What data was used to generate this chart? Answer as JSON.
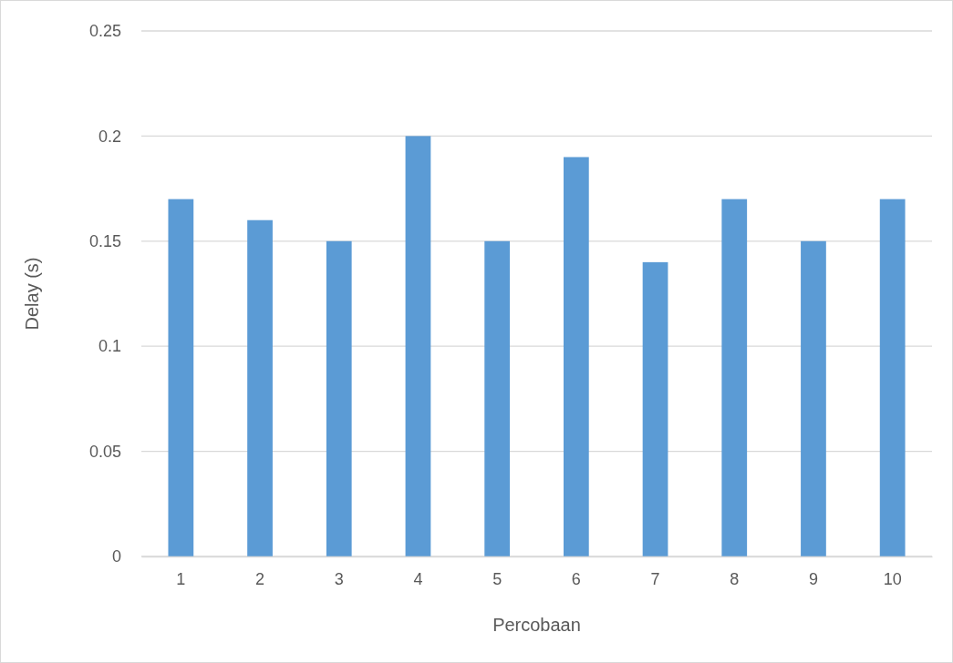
{
  "chart_data": {
    "type": "bar",
    "xlabel": "Percobaan",
    "ylabel": "Delay (s)",
    "categories": [
      "1",
      "2",
      "3",
      "4",
      "5",
      "6",
      "7",
      "8",
      "9",
      "10"
    ],
    "values": [
      0.17,
      0.16,
      0.15,
      0.2,
      0.15,
      0.19,
      0.14,
      0.17,
      0.15,
      0.17
    ],
    "color": "#5b9bd5",
    "ylim": [
      0,
      0.25
    ],
    "yticks": [
      0,
      0.05,
      0.1,
      0.15,
      0.2,
      0.25
    ],
    "grid": "y"
  }
}
